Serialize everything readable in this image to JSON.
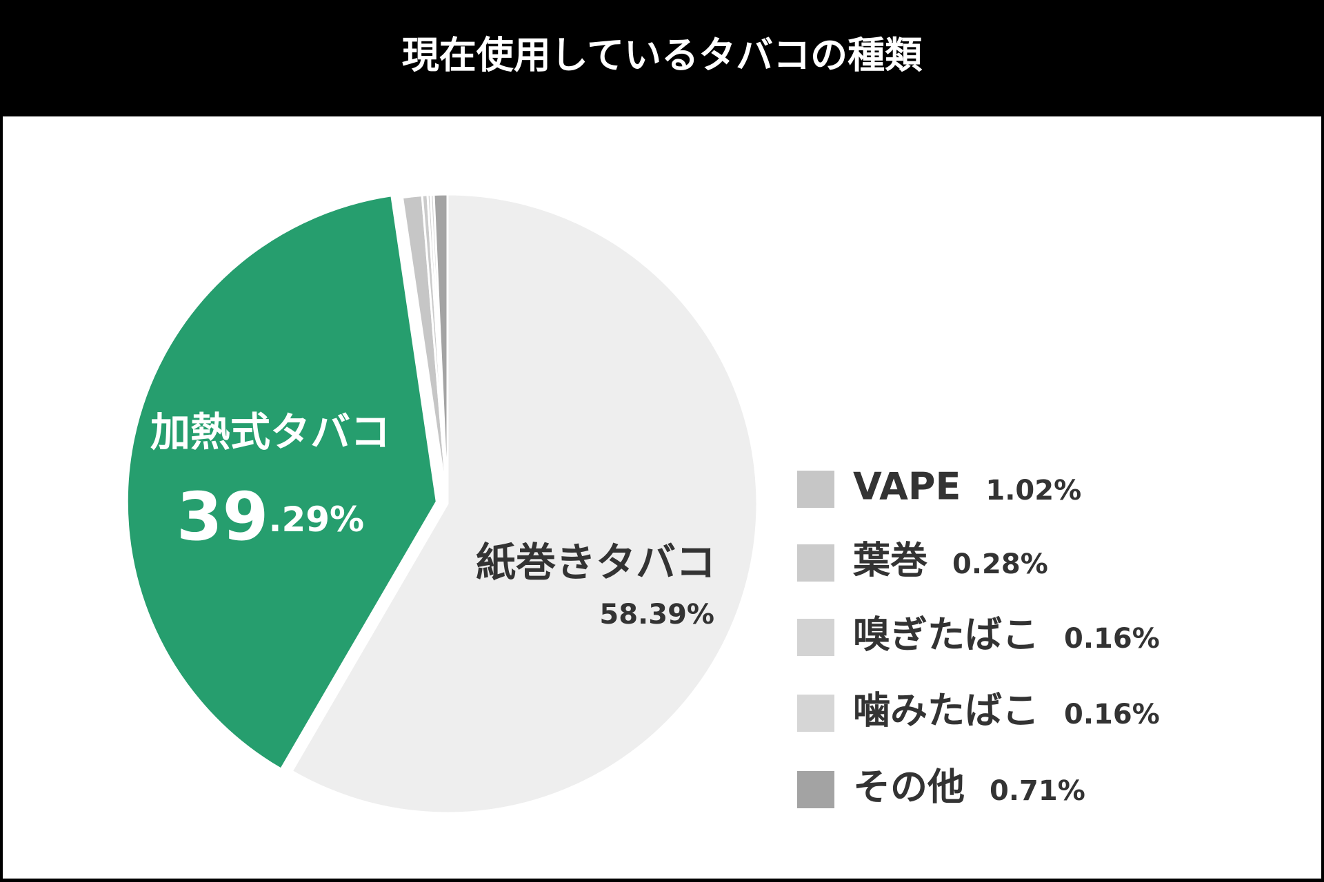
{
  "chart_data": {
    "type": "pie",
    "title": "現在使用しているタバコの種類",
    "categories": [
      "紙巻きタバコ",
      "加熱式タバコ",
      "VAPE",
      "葉巻",
      "嗅ぎたばこ",
      "噛みたばこ",
      "その他"
    ],
    "values": [
      58.39,
      39.29,
      1.02,
      0.28,
      0.16,
      0.16,
      0.71
    ],
    "value_labels": [
      "58.39%",
      "39.29%",
      "1.02%",
      "0.28%",
      "0.16%",
      "0.16%",
      "0.71%"
    ],
    "colors": [
      "#eeeeee",
      "#269e6e",
      "#c6c6c6",
      "#cbcbcb",
      "#d3d3d3",
      "#d6d6d6",
      "#a3a3a3"
    ]
  }
}
